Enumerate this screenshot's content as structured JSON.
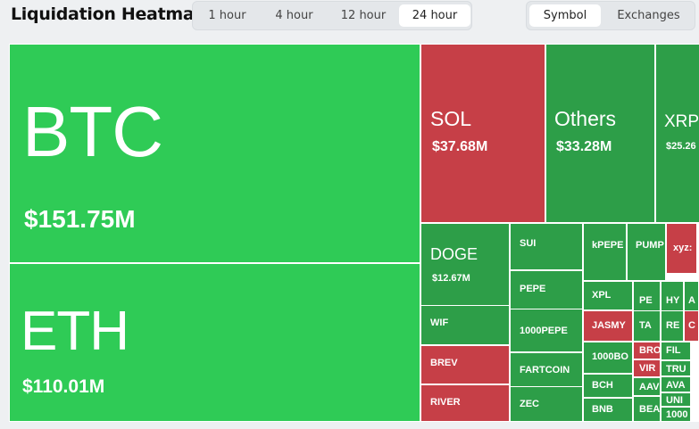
{
  "header": {
    "title": "Liquidation Heatmap",
    "time_tabs": [
      {
        "label": "1 hour",
        "active": false
      },
      {
        "label": "4 hour",
        "active": false
      },
      {
        "label": "12 hour",
        "active": false
      },
      {
        "label": "24 hour",
        "active": true
      }
    ],
    "group_tabs": [
      {
        "label": "Symbol",
        "active": true
      },
      {
        "label": "Exchanges",
        "active": false
      }
    ]
  },
  "colors": {
    "bright_green": "#2fcb56",
    "green": "#2d9e48",
    "red": "#c63f47"
  },
  "tiles": [
    {
      "symbol": "BTC",
      "value": "$151.75M",
      "tone": "bright"
    },
    {
      "symbol": "ETH",
      "value": "$110.01M",
      "tone": "bright"
    },
    {
      "symbol": "SOL",
      "value": "$37.68M",
      "tone": "red"
    },
    {
      "symbol": "Others",
      "value": "$33.28M",
      "tone": "green"
    },
    {
      "symbol": "XRP",
      "value": "$25.26",
      "tone": "green"
    },
    {
      "symbol": "DOGE",
      "value": "$12.67M",
      "tone": "green"
    },
    {
      "symbol": "WIF",
      "value": "",
      "tone": "green"
    },
    {
      "symbol": "BREV",
      "value": "",
      "tone": "red"
    },
    {
      "symbol": "RIVER",
      "value": "",
      "tone": "red"
    },
    {
      "symbol": "SUI",
      "value": "",
      "tone": "green"
    },
    {
      "symbol": "PEPE",
      "value": "",
      "tone": "green"
    },
    {
      "symbol": "1000PEPE",
      "value": "",
      "tone": "green"
    },
    {
      "symbol": "FARTCOIN",
      "value": "",
      "tone": "green"
    },
    {
      "symbol": "ZEC",
      "value": "",
      "tone": "green"
    },
    {
      "symbol": "kPEPE",
      "value": "",
      "tone": "green"
    },
    {
      "symbol": "PUMP",
      "value": "",
      "tone": "green"
    },
    {
      "symbol": "xyz:",
      "value": "",
      "tone": "red"
    },
    {
      "symbol": "XPL",
      "value": "",
      "tone": "green"
    },
    {
      "symbol": "PE",
      "value": "",
      "tone": "green"
    },
    {
      "symbol": "HY",
      "value": "",
      "tone": "green"
    },
    {
      "symbol": "A",
      "value": "",
      "tone": "green"
    },
    {
      "symbol": "JASMY",
      "value": "",
      "tone": "red"
    },
    {
      "symbol": "TA",
      "value": "",
      "tone": "green"
    },
    {
      "symbol": "RE",
      "value": "",
      "tone": "green"
    },
    {
      "symbol": "C",
      "value": "",
      "tone": "red"
    },
    {
      "symbol": "1000BO",
      "value": "",
      "tone": "green"
    },
    {
      "symbol": "BRO",
      "value": "",
      "tone": "red"
    },
    {
      "symbol": "FIL",
      "value": "",
      "tone": "green"
    },
    {
      "symbol": "VIR",
      "value": "",
      "tone": "red"
    },
    {
      "symbol": "TRU",
      "value": "",
      "tone": "green"
    },
    {
      "symbol": "BCH",
      "value": "",
      "tone": "green"
    },
    {
      "symbol": "AAV",
      "value": "",
      "tone": "green"
    },
    {
      "symbol": "AVA",
      "value": "",
      "tone": "green"
    },
    {
      "symbol": "UNI",
      "value": "",
      "tone": "green"
    },
    {
      "symbol": "BNB",
      "value": "",
      "tone": "green"
    },
    {
      "symbol": "BEA",
      "value": "",
      "tone": "green"
    },
    {
      "symbol": "1000",
      "value": "",
      "tone": "green"
    }
  ]
}
